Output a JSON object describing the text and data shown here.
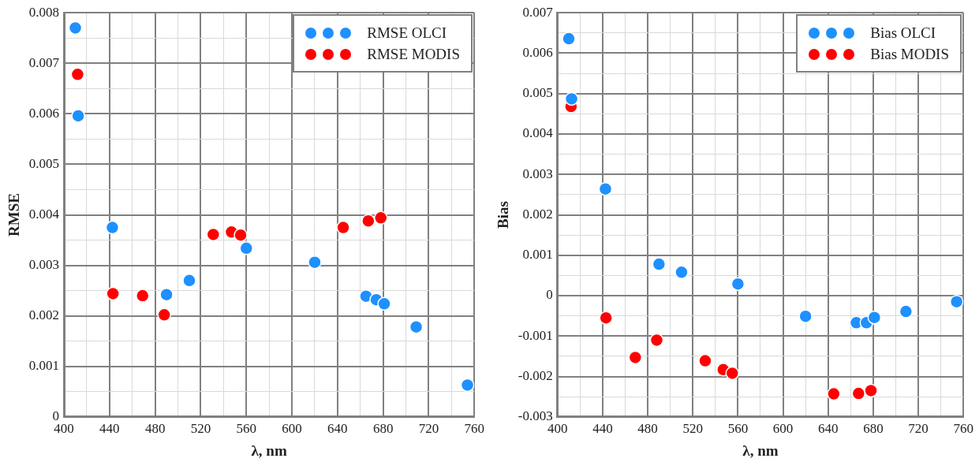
{
  "chart_data": [
    {
      "type": "scatter",
      "xlabel": "λ, nm",
      "ylabel": "RMSE",
      "legend": "top right",
      "grid": true,
      "marker": "circle",
      "xlim": [
        400,
        760
      ],
      "ylim": [
        0,
        0.008
      ],
      "xticks": [
        400,
        {
          "value": 420,
          "label": null
        },
        440,
        {
          "value": 460,
          "label": null
        },
        480,
        {
          "value": 500,
          "label": null
        },
        520,
        {
          "value": 540,
          "label": null
        },
        560,
        {
          "value": 580,
          "label": null
        },
        600,
        {
          "value": 620,
          "label": null
        },
        640,
        {
          "value": 660,
          "label": null
        },
        680,
        {
          "value": 700,
          "label": null
        },
        720,
        {
          "value": 740,
          "label": null
        },
        760
      ],
      "yticks": [
        0,
        {
          "value": 0.0005,
          "label": null
        },
        0.001,
        {
          "value": 0.0015,
          "label": null
        },
        0.002,
        {
          "value": 0.0025,
          "label": null
        },
        0.003,
        {
          "value": 0.0035,
          "label": null
        },
        0.004,
        {
          "value": 0.0045,
          "label": null
        },
        0.005,
        {
          "value": 0.0055,
          "label": null
        },
        0.006,
        {
          "value": 0.0065,
          "label": null
        },
        0.007,
        {
          "value": 0.0075,
          "label": null
        },
        0.008
      ],
      "series": [
        {
          "name": "RMSE OLCI",
          "color": "#1e90ff",
          "x": [
            410,
            412.5,
            442.5,
            490,
            510,
            560,
            620,
            665,
            674,
            681,
            709,
            754
          ],
          "values": [
            0.0077,
            0.00596,
            0.00375,
            0.00242,
            0.0027,
            0.00334,
            0.00306,
            0.00239,
            0.00232,
            0.00224,
            0.00178,
            0.00063
          ]
        },
        {
          "name": "RMSE MODIS",
          "color": "#ff0000",
          "x": [
            412,
            443,
            469,
            488,
            531,
            547,
            555,
            645,
            667,
            678
          ],
          "values": [
            0.00678,
            0.00244,
            0.0024,
            0.00202,
            0.00361,
            0.00366,
            0.0036,
            0.00375,
            0.00388,
            0.00394
          ]
        }
      ]
    },
    {
      "type": "scatter",
      "xlabel": "λ, nm",
      "ylabel": "Bias",
      "legend": "top right",
      "grid": true,
      "marker": "circle",
      "xlim": [
        400,
        760
      ],
      "ylim": [
        -0.003,
        0.007
      ],
      "xticks": [
        400,
        {
          "value": 420,
          "label": null
        },
        440,
        {
          "value": 460,
          "label": null
        },
        480,
        {
          "value": 500,
          "label": null
        },
        520,
        {
          "value": 540,
          "label": null
        },
        560,
        {
          "value": 580,
          "label": null
        },
        600,
        {
          "value": 620,
          "label": null
        },
        640,
        {
          "value": 660,
          "label": null
        },
        680,
        {
          "value": 700,
          "label": null
        },
        720,
        {
          "value": 740,
          "label": null
        },
        760
      ],
      "yticks": [
        -0.003,
        {
          "value": -0.0025,
          "label": null
        },
        -0.002,
        {
          "value": -0.0015,
          "label": null
        },
        -0.001,
        {
          "value": -0.0005,
          "label": null
        },
        0,
        {
          "value": 0.0005,
          "label": null
        },
        0.001,
        {
          "value": 0.0015,
          "label": null
        },
        0.002,
        {
          "value": 0.0025,
          "label": null
        },
        0.003,
        {
          "value": 0.0035,
          "label": null
        },
        0.004,
        {
          "value": 0.0045,
          "label": null
        },
        0.005,
        {
          "value": 0.0055,
          "label": null
        },
        0.006,
        {
          "value": 0.0065,
          "label": null
        },
        0.007
      ],
      "series": [
        {
          "name": "Bias OLCI",
          "color": "#1e90ff",
          "x": [
            410,
            412.5,
            442.5,
            490,
            510,
            560,
            620,
            665,
            674,
            681,
            709,
            754
          ],
          "values": [
            0.00636,
            0.00487,
            0.00264,
            0.00078,
            0.00058,
            0.00029,
            -0.00051,
            -0.00067,
            -0.00067,
            -0.00054,
            -0.00039,
            -0.00015
          ]
        },
        {
          "name": "Bias MODIS",
          "color": "#ff0000",
          "x": [
            412,
            443,
            469,
            488,
            531,
            547,
            555,
            645,
            667,
            678
          ],
          "values": [
            0.00468,
            -0.00055,
            -0.00153,
            -0.0011,
            -0.00161,
            -0.00183,
            -0.00192,
            -0.00243,
            -0.00242,
            -0.00235
          ]
        }
      ]
    }
  ]
}
